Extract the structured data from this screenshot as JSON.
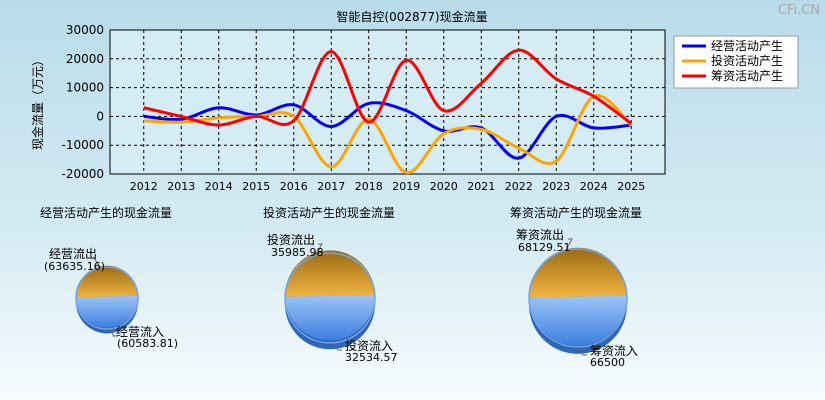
{
  "watermark": "CFi.CN",
  "chart_data": [
    {
      "type": "line",
      "title": "智能自控(002877)现金流量",
      "ylabel": "现金流量（万元）",
      "xlabel": "",
      "x": [
        "2012",
        "2013",
        "2014",
        "2015",
        "2016",
        "2017",
        "2018",
        "2019",
        "2020",
        "2021",
        "2022",
        "2023",
        "2024",
        "2025"
      ],
      "ylim": [
        -20000,
        30000
      ],
      "yticks": [
        30000,
        20000,
        10000,
        0,
        -10000,
        -20000
      ],
      "grid": true,
      "legend_position": "top-right",
      "series": [
        {
          "name": "经营活动产生",
          "color": "#0000ff",
          "values": [
            0,
            -1000,
            3000,
            500,
            4000,
            -3500,
            4500,
            2000,
            -5000,
            -4000,
            -14500,
            0,
            -4000,
            -3000
          ]
        },
        {
          "name": "投资活动产生",
          "color": "#ffa500",
          "values": [
            -1500,
            -2000,
            -500,
            0,
            0,
            -17500,
            -1000,
            -19500,
            -6000,
            -4500,
            -11000,
            -15500,
            7000,
            -3000
          ]
        },
        {
          "name": "筹资活动产生",
          "color": "#ff0000",
          "values": [
            3000,
            0,
            -3000,
            0,
            -1500,
            22500,
            -2000,
            19500,
            2000,
            11500,
            23000,
            13000,
            7000,
            -2500
          ]
        }
      ]
    },
    {
      "type": "pie",
      "title": "经营活动产生的现金流量",
      "slices": [
        {
          "label": "经营流出",
          "value_text": "(63635.16)",
          "value": 63635.16,
          "color": "#c7901f"
        },
        {
          "label": "经营流入",
          "value_text": "(60583.81)",
          "value": 60583.81,
          "color": "#4f8fe8"
        }
      ]
    },
    {
      "type": "pie",
      "title": "投资活动产生的现金流量",
      "slices": [
        {
          "label": "投资流出",
          "value_text": "35985.98",
          "value": 35985.98,
          "color": "#c7901f"
        },
        {
          "label": "投资流入",
          "value_text": "32534.57",
          "value": 32534.57,
          "color": "#4f8fe8"
        }
      ]
    },
    {
      "type": "pie",
      "title": "筹资活动产生的现金流量",
      "slices": [
        {
          "label": "筹资流出",
          "value_text": "68129.51",
          "value": 68129.51,
          "color": "#c7901f"
        },
        {
          "label": "筹资流入",
          "value_text": "66500",
          "value": 66500,
          "color": "#4f8fe8"
        }
      ]
    }
  ]
}
